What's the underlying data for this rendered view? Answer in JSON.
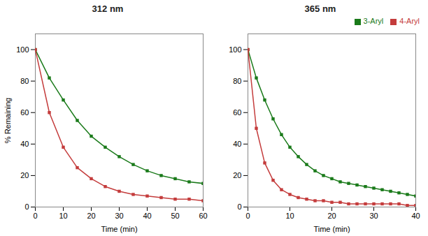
{
  "chart_data": [
    {
      "type": "line",
      "title": "312 nm",
      "xlabel": "Time (min)",
      "ylabel": "% Remaining",
      "x": [
        0,
        5,
        10,
        15,
        20,
        25,
        30,
        35,
        40,
        45,
        50,
        55,
        60
      ],
      "xlim": [
        0,
        60
      ],
      "xticks": [
        0,
        10,
        20,
        30,
        40,
        50,
        60
      ],
      "ylim": [
        0,
        110
      ],
      "yticks": [
        0,
        20,
        40,
        60,
        80,
        100
      ],
      "marker": "square",
      "series": [
        {
          "color": "#1a7a1a",
          "values": [
            100,
            82,
            68,
            55,
            45,
            38,
            32,
            27,
            23,
            20,
            18,
            16,
            15
          ]
        },
        {
          "color": "#c43c3c",
          "values": [
            100,
            60,
            38,
            25,
            18,
            13,
            10,
            8,
            7,
            6,
            5,
            5,
            4
          ]
        }
      ]
    },
    {
      "type": "line",
      "title": "365 nm",
      "xlabel": "Time (min)",
      "x": [
        0,
        2,
        4,
        6,
        8,
        10,
        12,
        14,
        16,
        18,
        20,
        22,
        24,
        26,
        28,
        30,
        32,
        34,
        36,
        38,
        40
      ],
      "xlim": [
        0,
        40
      ],
      "xticks": [
        0,
        10,
        20,
        30,
        40
      ],
      "ylim": [
        0,
        110
      ],
      "yticks": [
        0,
        20,
        40,
        60,
        80,
        100
      ],
      "marker": "square",
      "legend": "upper right",
      "series": [
        {
          "name": "3-Aryl",
          "color": "#1a7a1a",
          "values": [
            100,
            82,
            68,
            56,
            46,
            38,
            32,
            27,
            23,
            20,
            18,
            16,
            15,
            14,
            13,
            12,
            11,
            10,
            9,
            8,
            7
          ]
        },
        {
          "name": "4-Aryl",
          "color": "#c43c3c",
          "values": [
            100,
            50,
            28,
            17,
            11,
            8,
            6,
            5,
            4,
            4,
            3,
            3,
            2,
            2,
            2,
            2,
            2,
            2,
            2,
            1,
            1
          ]
        }
      ]
    }
  ]
}
